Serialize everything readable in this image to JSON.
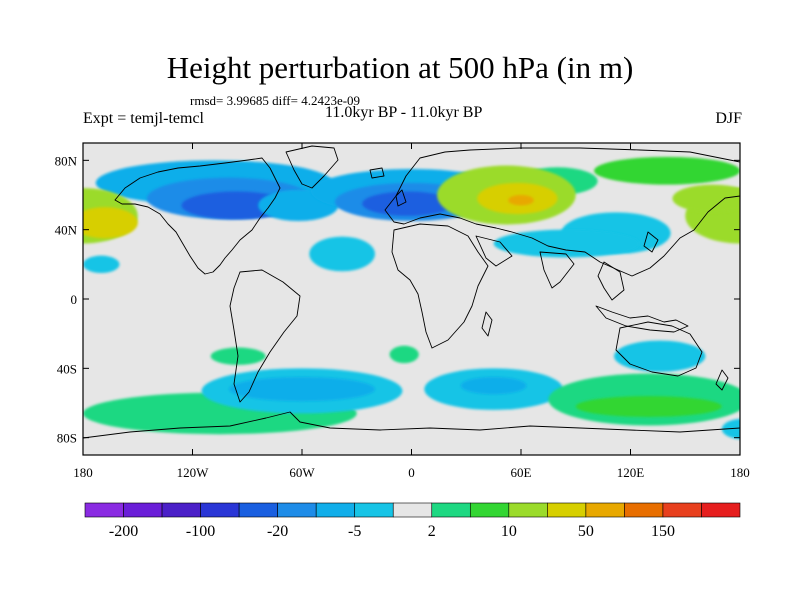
{
  "header": {
    "title": "Height perturbation at 500 hPa (in m)",
    "stats": "rmsd= 3.99685 diff= 4.2423e-09",
    "left_label": "Expt = temjl-temcl",
    "center_label": "11.0kyr BP - 11.0kyr BP",
    "right_label": "DJF"
  },
  "chart_data": {
    "type": "heatmap",
    "title": "Height perturbation at 500 hPa (in m)",
    "xlim": [
      -180,
      180
    ],
    "ylim": [
      -90,
      90
    ],
    "xticks": [
      {
        "value": -180,
        "label": "180"
      },
      {
        "value": -120,
        "label": "120W"
      },
      {
        "value": -60,
        "label": "60W"
      },
      {
        "value": 0,
        "label": "0"
      },
      {
        "value": 60,
        "label": "60E"
      },
      {
        "value": 120,
        "label": "120E"
      },
      {
        "value": 180,
        "label": "180"
      }
    ],
    "yticks": [
      {
        "value": 80,
        "label": "80N"
      },
      {
        "value": 40,
        "label": "40N"
      },
      {
        "value": 0,
        "label": "0"
      },
      {
        "value": -40,
        "label": "40S"
      },
      {
        "value": -80,
        "label": "80S"
      }
    ],
    "colorbar": {
      "colors": [
        "#8a2be2",
        "#6a1ed8",
        "#4b20c8",
        "#2a36d6",
        "#1a5fe0",
        "#1e8ce8",
        "#11aeea",
        "#17c4e6",
        "#e6e6e6",
        "#1ed882",
        "#33d633",
        "#9bdb2b",
        "#d7cf00",
        "#e8a800",
        "#e86e00",
        "#e8401e",
        "#e61e1e"
      ],
      "labels": [
        {
          "boundary": 1,
          "text": "-200"
        },
        {
          "boundary": 3,
          "text": "-100"
        },
        {
          "boundary": 5,
          "text": "-20"
        },
        {
          "boundary": 7,
          "text": "-5"
        },
        {
          "boundary": 9,
          "text": "2"
        },
        {
          "boundary": 11,
          "text": "10"
        },
        {
          "boundary": 13,
          "text": "50"
        },
        {
          "boundary": 15,
          "text": "150"
        }
      ]
    },
    "regions": [
      {
        "lon": -108,
        "lat": 67,
        "rx": 65,
        "ry": 13,
        "c": 6
      },
      {
        "lon": -100,
        "lat": 58,
        "rx": 45,
        "ry": 12,
        "c": 5
      },
      {
        "lon": -96,
        "lat": 54,
        "rx": 30,
        "ry": 8,
        "c": 4
      },
      {
        "lon": -62,
        "lat": 54,
        "rx": 22,
        "ry": 9,
        "c": 6
      },
      {
        "lon": 0,
        "lat": 62,
        "rx": 55,
        "ry": 13,
        "c": 6
      },
      {
        "lon": 0,
        "lat": 56,
        "rx": 42,
        "ry": 11,
        "c": 5
      },
      {
        "lon": -2,
        "lat": 55,
        "rx": 25,
        "ry": 7,
        "c": 4
      },
      {
        "lon": 80,
        "lat": 68,
        "rx": 22,
        "ry": 8,
        "c": 9
      },
      {
        "lon": 140,
        "lat": 74,
        "rx": 40,
        "ry": 8,
        "c": 10
      },
      {
        "lon": -180,
        "lat": 48,
        "rx": 30,
        "ry": 16,
        "c": 11
      },
      {
        "lon": 180,
        "lat": 48,
        "rx": 30,
        "ry": 16,
        "c": 11
      },
      {
        "lon": -168,
        "lat": 44,
        "rx": 18,
        "ry": 9,
        "c": 12
      },
      {
        "lon": 52,
        "lat": 60,
        "rx": 38,
        "ry": 17,
        "c": 11
      },
      {
        "lon": 58,
        "lat": 58,
        "rx": 22,
        "ry": 9,
        "c": 12
      },
      {
        "lon": 60,
        "lat": 57,
        "rx": 7,
        "ry": 3,
        "c": 13
      },
      {
        "lon": 165,
        "lat": 58,
        "rx": 22,
        "ry": 8,
        "c": 11
      },
      {
        "lon": 112,
        "lat": 38,
        "rx": 30,
        "ry": 12,
        "c": 7
      },
      {
        "lon": 85,
        "lat": 32,
        "rx": 40,
        "ry": 8,
        "c": 7
      },
      {
        "lon": -38,
        "lat": 26,
        "rx": 18,
        "ry": 10,
        "c": 7
      },
      {
        "lon": -170,
        "lat": 20,
        "rx": 10,
        "ry": 5,
        "c": 7
      },
      {
        "lon": 136,
        "lat": -33,
        "rx": 25,
        "ry": 9,
        "c": 7
      },
      {
        "lon": -95,
        "lat": -33,
        "rx": 15,
        "ry": 5,
        "c": 9
      },
      {
        "lon": -105,
        "lat": -66,
        "rx": 75,
        "ry": 12,
        "c": 9
      },
      {
        "lon": -60,
        "lat": -53,
        "rx": 55,
        "ry": 13,
        "c": 7
      },
      {
        "lon": -60,
        "lat": -52,
        "rx": 40,
        "ry": 7,
        "c": 6
      },
      {
        "lon": 45,
        "lat": -52,
        "rx": 38,
        "ry": 12,
        "c": 7
      },
      {
        "lon": 45,
        "lat": -50,
        "rx": 18,
        "ry": 5,
        "c": 6
      },
      {
        "lon": -4,
        "lat": -32,
        "rx": 8,
        "ry": 5,
        "c": 9
      },
      {
        "lon": 130,
        "lat": -58,
        "rx": 55,
        "ry": 15,
        "c": 9
      },
      {
        "lon": 130,
        "lat": -62,
        "rx": 40,
        "ry": 6,
        "c": 10
      },
      {
        "lon": 182,
        "lat": -75,
        "rx": 12,
        "ry": 6,
        "c": 7
      }
    ]
  }
}
